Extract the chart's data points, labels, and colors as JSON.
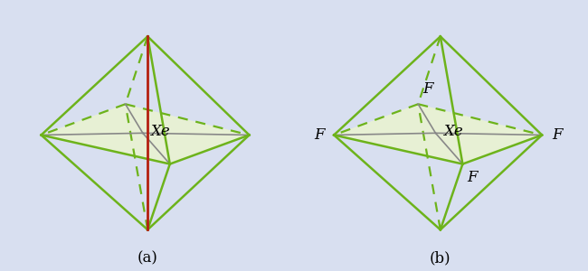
{
  "background_color": "#d8dff0",
  "label_a": "(a)",
  "label_b": "(b)",
  "xe_label": "Xe",
  "f_label": "F",
  "green": "#6db31b",
  "red": "#b52010",
  "gray": "#888888",
  "fill_color": "#eaf4d0",
  "fill_alpha": 0.85,
  "font_size_label": 12,
  "font_size_atom": 12,
  "lw_solid": 1.8,
  "lw_dashed": 1.6,
  "lw_gray": 1.2,
  "lw_red": 2.0
}
